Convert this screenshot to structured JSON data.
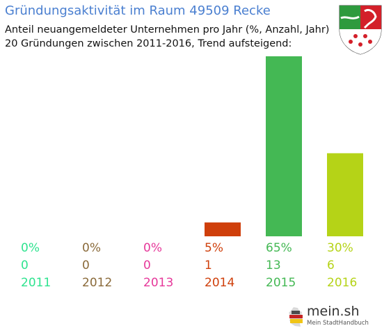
{
  "header": {
    "title": "Gründungsaktivität im Raum 49509 Recke",
    "subtitle_line1": "Anteil neuangemeldeter Unternehmen pro Jahr (%, Anzahl, Jahr)",
    "subtitle_line2": "20 Gründungen zwischen 2011-2016, Trend aufsteigend:"
  },
  "crest": {
    "icon": "nrw-coat-of-arms-icon",
    "colors": [
      "#2e9a3e",
      "#ffffff",
      "#d3202a"
    ]
  },
  "chart_data": {
    "type": "bar",
    "title": "Gründungsaktivität im Raum 49509 Recke",
    "categories": [
      "2011",
      "2012",
      "2013",
      "2014",
      "2015",
      "2016"
    ],
    "percent_labels": [
      "0%",
      "0%",
      "0%",
      "5%",
      "65%",
      "30%"
    ],
    "count_labels": [
      "0",
      "0",
      "0",
      "1",
      "13",
      "6"
    ],
    "values": [
      0,
      0,
      0,
      5,
      65,
      30
    ],
    "counts": [
      0,
      0,
      0,
      1,
      13,
      6
    ],
    "colors": [
      "#2ee38f",
      "#8a6a3a",
      "#e6389a",
      "#cf3f0b",
      "#44b854",
      "#b5d317"
    ],
    "ylim": [
      0,
      65
    ],
    "grid": false,
    "legend": "none"
  },
  "logo": {
    "text": "mein.sh",
    "tagline": "Mein StadtHandbuch",
    "icon": "germany-map-icon"
  }
}
